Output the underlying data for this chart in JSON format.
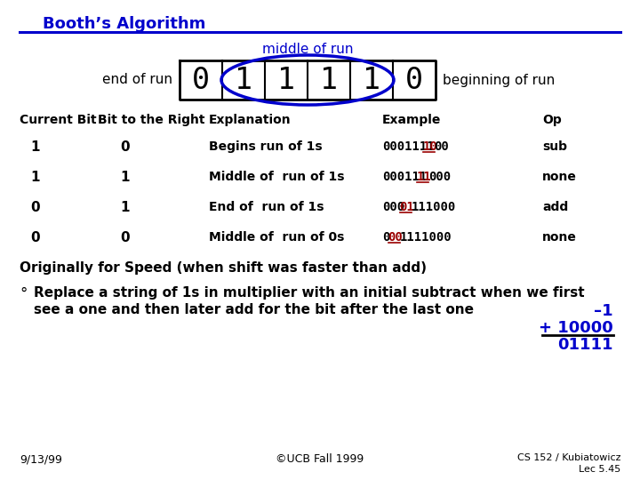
{
  "title": "Booth’s Algorithm",
  "title_color": "#0000CC",
  "background_color": "#ffffff",
  "bits": [
    "0",
    "1",
    "1",
    "1",
    "1",
    "0"
  ],
  "middle_of_run_label": "middle of run",
  "end_of_run_label": "end of run",
  "beginning_of_run_label": "beginning of run",
  "table_headers_x": [
    22,
    110,
    235,
    430,
    610
  ],
  "table_header_labels": [
    "Current Bit",
    "Bit to the Right",
    "Explanation",
    "Example",
    "Op"
  ],
  "row_data": [
    [
      "1",
      "0",
      "Begins run of 1s ",
      "0001111",
      "10",
      "00",
      "sub"
    ],
    [
      "1",
      "1",
      "Middle of  run of 1s",
      "000111",
      "11",
      "000",
      "none"
    ],
    [
      "0",
      "1",
      "End of  run of 1s ",
      "000",
      "01",
      "111000",
      "add"
    ],
    [
      "0",
      "0",
      "Middle of  run of 0s",
      "0",
      "00",
      "1111000",
      "none"
    ]
  ],
  "originally_text": "Originally for Speed (when shift was faster than add)",
  "bullet_text_line1": "Replace a string of 1s in multiplier with an initial subtract when we first",
  "bullet_text_line2": "see a one and then later add for the bit after the last one",
  "math_line1": "–1",
  "math_line2": "+ 10000",
  "math_line3": "01111",
  "math_color": "#0000CC",
  "footer_left": "9/13/99",
  "footer_center": "©UCB Fall 1999",
  "footer_right_line1": "CS 152 / Kubiatowicz",
  "footer_right_line2": "Lec 5.45"
}
